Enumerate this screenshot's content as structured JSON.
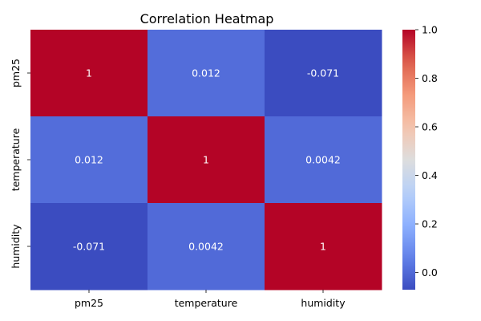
{
  "chart_data": {
    "type": "heatmap",
    "title": "Correlation Heatmap",
    "x_categories": [
      "pm25",
      "temperature",
      "humidity"
    ],
    "y_categories": [
      "pm25",
      "temperature",
      "humidity"
    ],
    "matrix": [
      [
        1,
        0.012,
        -0.071
      ],
      [
        0.012,
        1,
        0.0042
      ],
      [
        -0.071,
        0.0042,
        1
      ]
    ],
    "cell_labels": [
      [
        "1",
        "0.012",
        "-0.071"
      ],
      [
        "0.012",
        "1",
        "0.0042"
      ],
      [
        "-0.071",
        "0.0042",
        "1"
      ]
    ],
    "colormap": "coolwarm",
    "colorbar": {
      "range": [
        -0.071,
        1.0
      ],
      "ticks": [
        0.0,
        0.2,
        0.4,
        0.6,
        0.8,
        1.0
      ],
      "tick_labels": [
        "0.0",
        "0.2",
        "0.4",
        "0.6",
        "0.8",
        "1.0"
      ]
    },
    "colors": {
      "low": "#3b4cc0",
      "mid": "#dddddd",
      "high": "#b40426"
    }
  }
}
